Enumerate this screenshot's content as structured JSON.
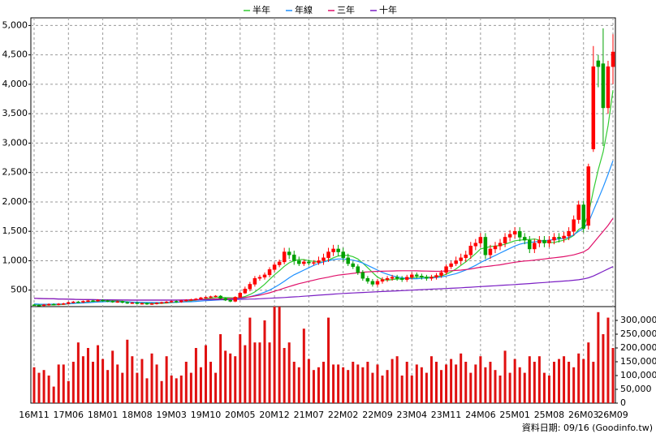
{
  "chart_data": {
    "type": "candlestick",
    "legend": "top",
    "grid": true,
    "up_color": "#ff0000",
    "down_color": "#00a000",
    "footnote": "資料日期: 09/16  (Goodinfo.tw)",
    "categories": [
      "16M11",
      null,
      null,
      null,
      null,
      null,
      null,
      "17M06",
      null,
      null,
      null,
      null,
      null,
      null,
      "18M01",
      null,
      null,
      null,
      null,
      null,
      null,
      "18M08",
      null,
      null,
      null,
      null,
      null,
      null,
      "19M03",
      null,
      null,
      null,
      null,
      null,
      null,
      "19M10",
      null,
      null,
      null,
      null,
      null,
      null,
      "20M05",
      null,
      null,
      null,
      null,
      null,
      null,
      "20M12",
      null,
      null,
      null,
      null,
      null,
      null,
      "21M07",
      null,
      null,
      null,
      null,
      null,
      null,
      "22M02",
      null,
      null,
      null,
      null,
      null,
      null,
      "22M09",
      null,
      null,
      null,
      null,
      null,
      null,
      "23M04",
      null,
      null,
      null,
      null,
      null,
      null,
      "23M11",
      null,
      null,
      null,
      null,
      null,
      null,
      "24M06",
      null,
      null,
      null,
      null,
      null,
      null,
      "25M01",
      null,
      null,
      null,
      null,
      null,
      null,
      "25M08",
      null,
      null,
      null,
      null,
      null,
      null,
      "26M03",
      null,
      null,
      null,
      null,
      null,
      "26M09"
    ],
    "open": [
      250,
      245,
      240,
      250,
      260,
      255,
      265,
      270,
      290,
      300,
      295,
      310,
      320,
      315,
      330,
      320,
      310,
      300,
      305,
      290,
      280,
      285,
      270,
      275,
      265,
      270,
      280,
      290,
      300,
      310,
      300,
      320,
      330,
      340,
      350,
      370,
      380,
      390,
      400,
      360,
      330,
      310,
      380,
      450,
      520,
      600,
      700,
      720,
      760,
      850,
      930,
      980,
      1150,
      1100,
      1000,
      950,
      980,
      960,
      970,
      1000,
      1050,
      1150,
      1200,
      1150,
      1050,
      950,
      900,
      800,
      700,
      650,
      600,
      650,
      680,
      700,
      720,
      700,
      680,
      720,
      760,
      740,
      720,
      700,
      720,
      750,
      800,
      900,
      950,
      1000,
      1050,
      1100,
      1250,
      1300,
      1400,
      1100,
      1200,
      1250,
      1300,
      1400,
      1450,
      1500,
      1400,
      1350,
      1200,
      1300,
      1350,
      1300,
      1350,
      1400,
      1380,
      1420,
      1500,
      1700,
      1950,
      1600,
      2900,
      4400,
      4350,
      3600,
      4300
    ],
    "high": [
      265,
      260,
      265,
      275,
      275,
      280,
      285,
      305,
      315,
      315,
      325,
      335,
      335,
      345,
      345,
      335,
      325,
      320,
      320,
      305,
      300,
      300,
      290,
      290,
      285,
      295,
      305,
      315,
      325,
      325,
      335,
      345,
      355,
      365,
      385,
      395,
      405,
      415,
      415,
      375,
      345,
      395,
      465,
      560,
      640,
      740,
      760,
      800,
      890,
      970,
      1020,
      1220,
      1220,
      1170,
      1070,
      1020,
      1020,
      1010,
      1070,
      1120,
      1220,
      1270,
      1270,
      1220,
      1120,
      990,
      940,
      840,
      740,
      690,
      690,
      720,
      740,
      760,
      760,
      740,
      760,
      800,
      800,
      780,
      760,
      760,
      790,
      840,
      940,
      990,
      1070,
      1120,
      1170,
      1320,
      1370,
      1470,
      1470,
      1270,
      1320,
      1370,
      1470,
      1520,
      1570,
      1570,
      1470,
      1420,
      1370,
      1420,
      1420,
      1420,
      1470,
      1470,
      1490,
      1570,
      1770,
      2020,
      2020,
      2650,
      4650,
      4500,
      4950,
      4400,
      4850
    ],
    "low": [
      230,
      225,
      225,
      235,
      240,
      240,
      250,
      255,
      275,
      280,
      280,
      295,
      300,
      300,
      305,
      295,
      285,
      285,
      275,
      265,
      265,
      255,
      255,
      250,
      250,
      255,
      265,
      275,
      285,
      285,
      285,
      305,
      315,
      325,
      335,
      355,
      365,
      375,
      345,
      315,
      295,
      295,
      365,
      435,
      480,
      560,
      660,
      680,
      720,
      810,
      890,
      940,
      1030,
      930,
      910,
      910,
      920,
      920,
      930,
      930,
      980,
      1080,
      1080,
      980,
      910,
      860,
      760,
      660,
      610,
      560,
      560,
      610,
      640,
      660,
      660,
      640,
      640,
      680,
      700,
      680,
      660,
      660,
      680,
      710,
      760,
      860,
      910,
      930,
      980,
      1030,
      1180,
      1230,
      1030,
      1030,
      1130,
      1180,
      1230,
      1330,
      1380,
      1330,
      1280,
      1130,
      1130,
      1230,
      1230,
      1230,
      1280,
      1310,
      1310,
      1350,
      1430,
      1630,
      1480,
      1530,
      2850,
      3950,
      2950,
      3500,
      4000
    ],
    "close": [
      245,
      240,
      250,
      260,
      255,
      265,
      270,
      290,
      300,
      295,
      310,
      320,
      315,
      330,
      320,
      310,
      300,
      305,
      290,
      280,
      285,
      270,
      275,
      265,
      270,
      280,
      290,
      300,
      310,
      300,
      320,
      330,
      340,
      350,
      370,
      380,
      390,
      400,
      360,
      330,
      310,
      380,
      450,
      520,
      600,
      700,
      720,
      760,
      850,
      930,
      980,
      1150,
      1100,
      1000,
      950,
      980,
      960,
      970,
      1000,
      1050,
      1150,
      1200,
      1150,
      1050,
      950,
      900,
      800,
      700,
      650,
      600,
      650,
      680,
      700,
      720,
      700,
      680,
      720,
      760,
      740,
      720,
      700,
      720,
      750,
      800,
      900,
      950,
      1000,
      1050,
      1100,
      1250,
      1300,
      1400,
      1100,
      1200,
      1250,
      1300,
      1400,
      1450,
      1500,
      1400,
      1350,
      1200,
      1300,
      1350,
      1300,
      1350,
      1400,
      1380,
      1420,
      1500,
      1700,
      1950,
      1550,
      2600,
      4300,
      4300,
      3600,
      4300,
      4550
    ],
    "series": [
      {
        "name": "半年",
        "color": "#33cc33",
        "values": [
          250,
          248,
          247,
          248,
          250,
          253,
          257,
          265,
          272,
          280,
          288,
          296,
          303,
          310,
          316,
          320,
          318,
          315,
          310,
          303,
          295,
          290,
          283,
          277,
          274,
          273,
          275,
          280,
          288,
          292,
          300,
          308,
          318,
          328,
          340,
          352,
          363,
          375,
          378,
          375,
          370,
          368,
          373,
          392,
          425,
          470,
          530,
          600,
          680,
          760,
          830,
          905,
          965,
          1000,
          1020,
          1020,
          1000,
          990,
          975,
          980,
          1010,
          1050,
          1080,
          1090,
          1090,
          1070,
          1030,
          960,
          880,
          800,
          720,
          680,
          670,
          680,
          690,
          690,
          700,
          710,
          720,
          720,
          720,
          720,
          730,
          740,
          770,
          810,
          860,
          920,
          980,
          1050,
          1120,
          1200,
          1220,
          1240,
          1250,
          1260,
          1280,
          1310,
          1340,
          1350,
          1360,
          1360,
          1370,
          1350,
          1330,
          1310,
          1310,
          1330,
          1350,
          1380,
          1430,
          1530,
          1580,
          1790,
          2190,
          2550,
          2850,
          3300,
          3900
        ]
      },
      {
        "name": "年線",
        "color": "#1e90ff",
        "values": [
          265,
          262,
          260,
          260,
          262,
          264,
          266,
          270,
          274,
          278,
          282,
          287,
          292,
          297,
          301,
          304,
          305,
          303,
          300,
          298,
          296,
          294,
          293,
          291,
          290,
          289,
          289,
          290,
          292,
          294,
          297,
          300,
          303,
          308,
          314,
          320,
          325,
          330,
          334,
          337,
          340,
          345,
          355,
          370,
          390,
          410,
          435,
          465,
          500,
          545,
          595,
          650,
          710,
          760,
          800,
          840,
          880,
          920,
          955,
          980,
          1000,
          1020,
          1030,
          1030,
          1020,
          1010,
          990,
          960,
          920,
          880,
          840,
          800,
          770,
          745,
          725,
          710,
          700,
          695,
          695,
          700,
          705,
          710,
          715,
          725,
          740,
          760,
          780,
          810,
          840,
          880,
          920,
          970,
          1010,
          1050,
          1090,
          1130,
          1170,
          1210,
          1250,
          1280,
          1300,
          1310,
          1320,
          1330,
          1340,
          1350,
          1360,
          1370,
          1380,
          1400,
          1440,
          1500,
          1550,
          1650,
          1850,
          2050,
          2250,
          2470,
          2700
        ]
      },
      {
        "name": "三年",
        "color": "#e0106a",
        "values": [
          360,
          358,
          356,
          354,
          352,
          350,
          348,
          346,
          344,
          342,
          340,
          338,
          337,
          336,
          335,
          334,
          333,
          332,
          331,
          330,
          330,
          330,
          330,
          330,
          330,
          330,
          330,
          330,
          330,
          330,
          332,
          334,
          336,
          338,
          340,
          343,
          346,
          350,
          352,
          355,
          358,
          362,
          368,
          376,
          386,
          400,
          415,
          435,
          455,
          480,
          505,
          535,
          560,
          585,
          610,
          630,
          650,
          670,
          690,
          705,
          720,
          740,
          755,
          765,
          775,
          785,
          795,
          805,
          810,
          815,
          820,
          822,
          824,
          826,
          828,
          830,
          830,
          830,
          828,
          826,
          824,
          822,
          820,
          822,
          825,
          830,
          835,
          840,
          850,
          860,
          875,
          890,
          900,
          910,
          920,
          930,
          945,
          960,
          975,
          985,
          995,
          1000,
          1010,
          1020,
          1030,
          1040,
          1050,
          1060,
          1070,
          1085,
          1100,
          1125,
          1150,
          1200,
          1300,
          1400,
          1500,
          1600,
          1720
        ]
      },
      {
        "name": "十年",
        "color": "#7b1fc4",
        "values": [
          360,
          358,
          356,
          354,
          352,
          350,
          348,
          346,
          344,
          342,
          340,
          339,
          338,
          337,
          336,
          335,
          334,
          333,
          332,
          332,
          331,
          331,
          330,
          330,
          330,
          330,
          330,
          330,
          330,
          330,
          330,
          331,
          332,
          333,
          334,
          335,
          336,
          337,
          338,
          339,
          340,
          342,
          344,
          346,
          348,
          350,
          354,
          358,
          362,
          366,
          370,
          375,
          380,
          385,
          390,
          396,
          402,
          408,
          414,
          420,
          426,
          432,
          438,
          443,
          448,
          452,
          456,
          460,
          464,
          468,
          472,
          476,
          480,
          484,
          488,
          492,
          496,
          500,
          504,
          508,
          512,
          516,
          520,
          524,
          528,
          532,
          536,
          540,
          545,
          550,
          555,
          560,
          565,
          570,
          575,
          580,
          585,
          590,
          595,
          600,
          606,
          612,
          618,
          624,
          630,
          636,
          642,
          648,
          654,
          660,
          668,
          676,
          690,
          710,
          740,
          780,
          820,
          860,
          900
        ]
      }
    ],
    "ylim": [
      220,
      5130
    ],
    "yticks": [
      500,
      {
        "value": 1000,
        "label": "1,000"
      },
      {
        "value": 1500,
        "label": "1,500"
      },
      {
        "value": 2000,
        "label": "2,000"
      },
      {
        "value": 2500,
        "label": "2,500"
      },
      {
        "value": 3000,
        "label": "3,000"
      },
      {
        "value": 3500,
        "label": "3,500"
      },
      {
        "value": 4000,
        "label": "4,000"
      },
      {
        "value": 4500,
        "label": "4,500"
      },
      {
        "value": 5000,
        "label": "5,000"
      }
    ],
    "volume": {
      "type": "bar",
      "color": "#e01010",
      "values": [
        130000,
        110000,
        120000,
        100000,
        60000,
        140000,
        140000,
        80000,
        150000,
        220000,
        170000,
        200000,
        150000,
        210000,
        160000,
        120000,
        190000,
        140000,
        110000,
        230000,
        170000,
        110000,
        160000,
        90000,
        180000,
        140000,
        80000,
        170000,
        100000,
        90000,
        100000,
        150000,
        110000,
        200000,
        130000,
        210000,
        150000,
        110000,
        250000,
        190000,
        180000,
        170000,
        250000,
        210000,
        310000,
        220000,
        220000,
        300000,
        220000,
        350000,
        350000,
        200000,
        220000,
        150000,
        130000,
        270000,
        160000,
        120000,
        130000,
        150000,
        310000,
        140000,
        140000,
        130000,
        120000,
        150000,
        140000,
        130000,
        150000,
        110000,
        140000,
        100000,
        120000,
        160000,
        170000,
        100000,
        150000,
        100000,
        140000,
        130000,
        110000,
        170000,
        150000,
        120000,
        140000,
        160000,
        140000,
        180000,
        150000,
        110000,
        140000,
        170000,
        130000,
        150000,
        120000,
        100000,
        190000,
        110000,
        160000,
        130000,
        110000,
        170000,
        150000,
        170000,
        110000,
        100000,
        150000,
        160000,
        170000,
        150000,
        130000,
        180000,
        160000,
        220000,
        150000,
        330000,
        250000,
        310000,
        200000
      ],
      "ylim": [
        0,
        350000
      ],
      "yticks": [
        0,
        {
          "value": 50000,
          "label": "50,000"
        },
        {
          "value": 100000,
          "label": "100,000"
        },
        {
          "value": 150000,
          "label": "150,000"
        },
        {
          "value": 200000,
          "label": "200,000"
        },
        {
          "value": 250000,
          "label": "250,000"
        },
        {
          "value": 300000,
          "label": "300,000"
        }
      ]
    }
  }
}
